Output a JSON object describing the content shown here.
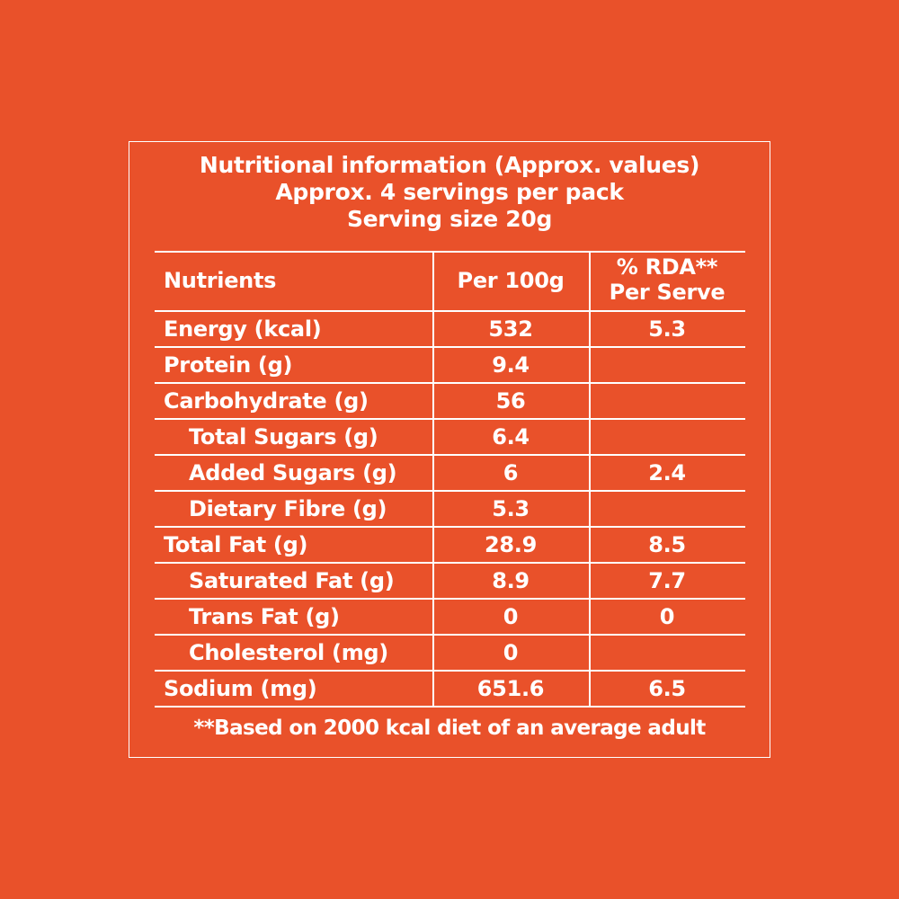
{
  "header": {
    "lines": [
      "Nutritional information (Approx. values)",
      "Approx. 4 servings per pack",
      "Serving size 20g"
    ]
  },
  "table": {
    "columns": [
      "Nutrients",
      "Per 100g",
      [
        "% RDA**",
        "Per Serve"
      ]
    ],
    "rows": [
      {
        "cells": [
          "Energy (kcal)",
          "532",
          "5.3"
        ]
      },
      {
        "cells": [
          "Protein (g)",
          "9.4",
          null
        ]
      },
      {
        "cells": [
          "Carbohydrate (g)",
          "56",
          null
        ],
        "sub_rows": [
          [
            "Total Sugars (g)",
            "6.4",
            null
          ],
          [
            "Added Sugars (g)",
            "6",
            "2.4"
          ],
          [
            "Dietary Fibre (g)",
            "5.3",
            null
          ]
        ]
      },
      {
        "cells": [
          "Total Fat (g)",
          "28.9",
          "8.5"
        ],
        "sub_rows": [
          [
            "Saturated Fat (g)",
            "8.9",
            "7.7"
          ],
          [
            "Trans Fat (g)",
            "0",
            "0"
          ],
          [
            "Cholesterol (mg)",
            "0",
            null
          ]
        ]
      },
      {
        "cells": [
          "Sodium (mg)",
          "651.6",
          "6.5"
        ]
      }
    ]
  },
  "footnote": "**Based on 2000 kcal diet of an average adult"
}
